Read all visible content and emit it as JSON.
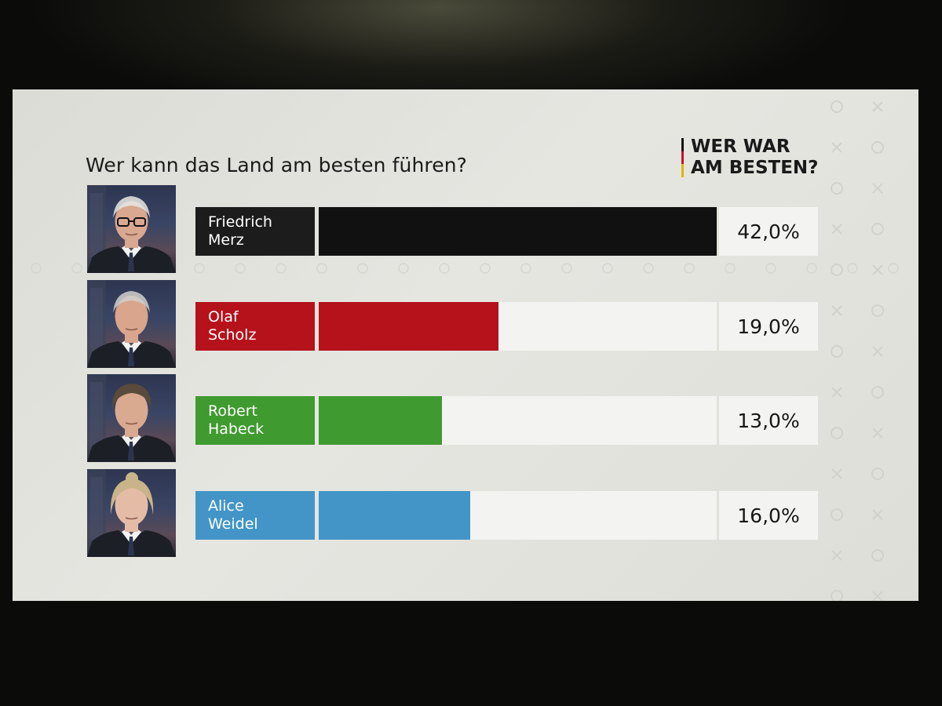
{
  "header": {
    "question": "Wer kann das Land am besten führen?",
    "brand_line1": "WER WAR",
    "brand_line2": "AM BESTEN?"
  },
  "chart_data": {
    "type": "bar",
    "orientation": "horizontal",
    "title": "Wer kann das Land am besten führen?",
    "categories": [
      "Friedrich Merz",
      "Olaf Scholz",
      "Robert Habeck",
      "Alice Weidel"
    ],
    "values": [
      42.0,
      19.0,
      13.0,
      16.0
    ],
    "unit": "%",
    "xlim": [
      0,
      42
    ],
    "grid": false,
    "legend": "none",
    "colors": [
      "#111111",
      "#b5121b",
      "#3f9a2f",
      "#4295c6"
    ]
  },
  "candidates": [
    {
      "first_name": "Friedrich",
      "last_name": "Merz",
      "value": 42.0,
      "value_label": "42,0%",
      "color": "#111111",
      "name_bg": "#1c1c1c",
      "skin": "#d8a890",
      "hair": "#e8e8e4",
      "glasses": true,
      "hair_style": "bald"
    },
    {
      "first_name": "Olaf",
      "last_name": "Scholz",
      "value": 19.0,
      "value_label": "19,0%",
      "color": "#b5121b",
      "name_bg": "#b5121b",
      "skin": "#d9a58c",
      "hair": "#d0d0cc",
      "glasses": false,
      "hair_style": "bald"
    },
    {
      "first_name": "Robert",
      "last_name": "Habeck",
      "value": 13.0,
      "value_label": "13,0%",
      "color": "#3f9a2f",
      "name_bg": "#3f9a2f",
      "skin": "#d9aa90",
      "hair": "#5a4a3c",
      "glasses": false,
      "hair_style": "short"
    },
    {
      "first_name": "Alice",
      "last_name": "Weidel",
      "value": 16.0,
      "value_label": "16,0%",
      "color": "#4295c6",
      "name_bg": "#4295c6",
      "skin": "#e4bca6",
      "hair": "#c9b48a",
      "glasses": false,
      "hair_style": "bun"
    }
  ]
}
